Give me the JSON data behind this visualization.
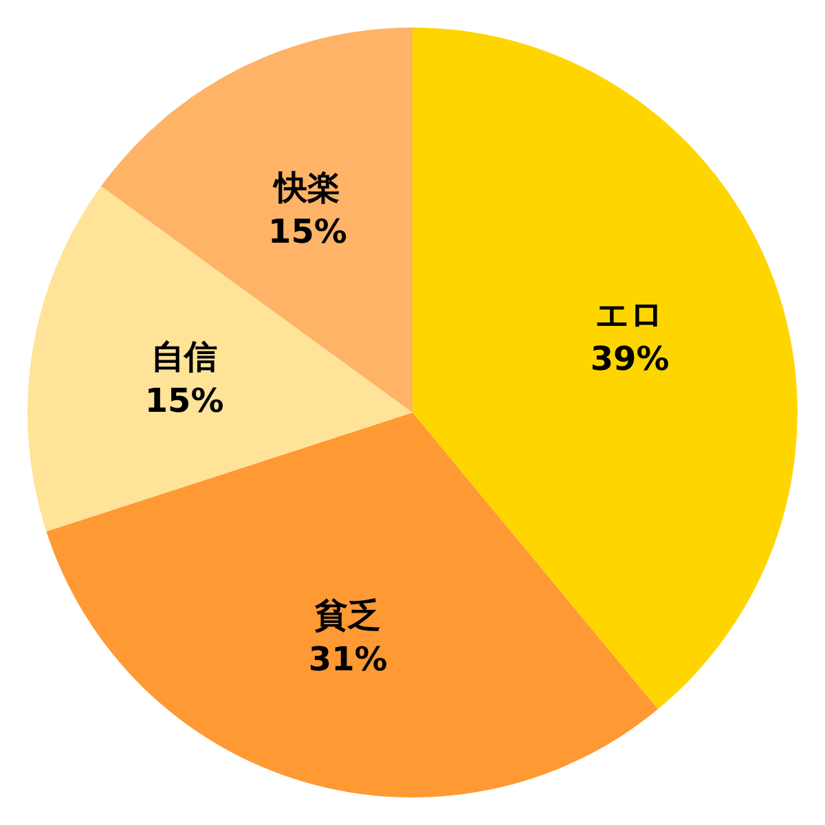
{
  "chart_data": {
    "type": "pie",
    "categories": [
      "エロ",
      "貧乏",
      "自信",
      "快楽"
    ],
    "values": [
      39,
      31,
      15,
      15
    ],
    "colors": [
      "#ffd500",
      "#ff9933",
      "#ffe399",
      "#ffb366"
    ],
    "value_labels": [
      "39%",
      "31%",
      "15%",
      "15%"
    ]
  }
}
